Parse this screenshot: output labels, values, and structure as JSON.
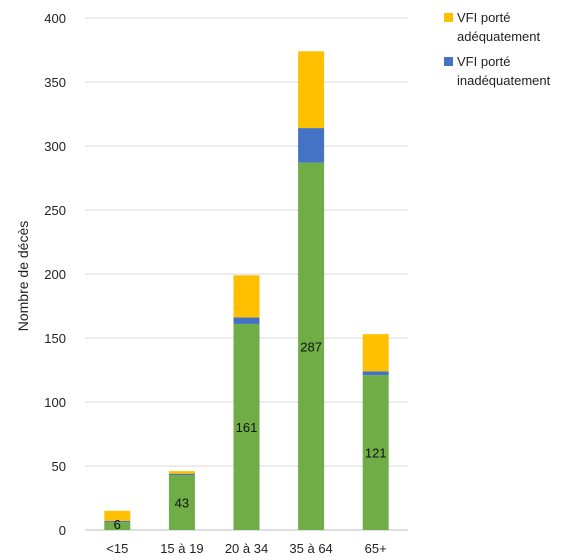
{
  "chart_data": {
    "type": "bar",
    "stacked": true,
    "title": "",
    "xlabel": "",
    "ylabel": "Nombre de décès",
    "ylim": [
      0,
      400
    ],
    "yticks": [
      0,
      50,
      100,
      150,
      200,
      250,
      300,
      350,
      400
    ],
    "grid": true,
    "legend_position": "top-right",
    "categories": [
      "<15",
      "15 à 19",
      "20 à 34",
      "35 à 64",
      "65+"
    ],
    "series": [
      {
        "name": "",
        "values": [
          6,
          43,
          161,
          287,
          121
        ],
        "color": "#70ad47",
        "show_labels": true
      },
      {
        "name": "VFI porté inadéquatement",
        "values": [
          1,
          1,
          5,
          27,
          3
        ],
        "color": "#4472c4",
        "show_labels": false
      },
      {
        "name": "VFI porté adéquatement",
        "values": [
          8,
          2,
          33,
          60,
          29
        ],
        "color": "#ffc000",
        "show_labels": false
      }
    ],
    "legend": [
      {
        "label": "VFI porté adéquatement",
        "color": "#ffc000"
      },
      {
        "label": "VFI porté inadéquatement",
        "color": "#4472c4"
      }
    ]
  }
}
